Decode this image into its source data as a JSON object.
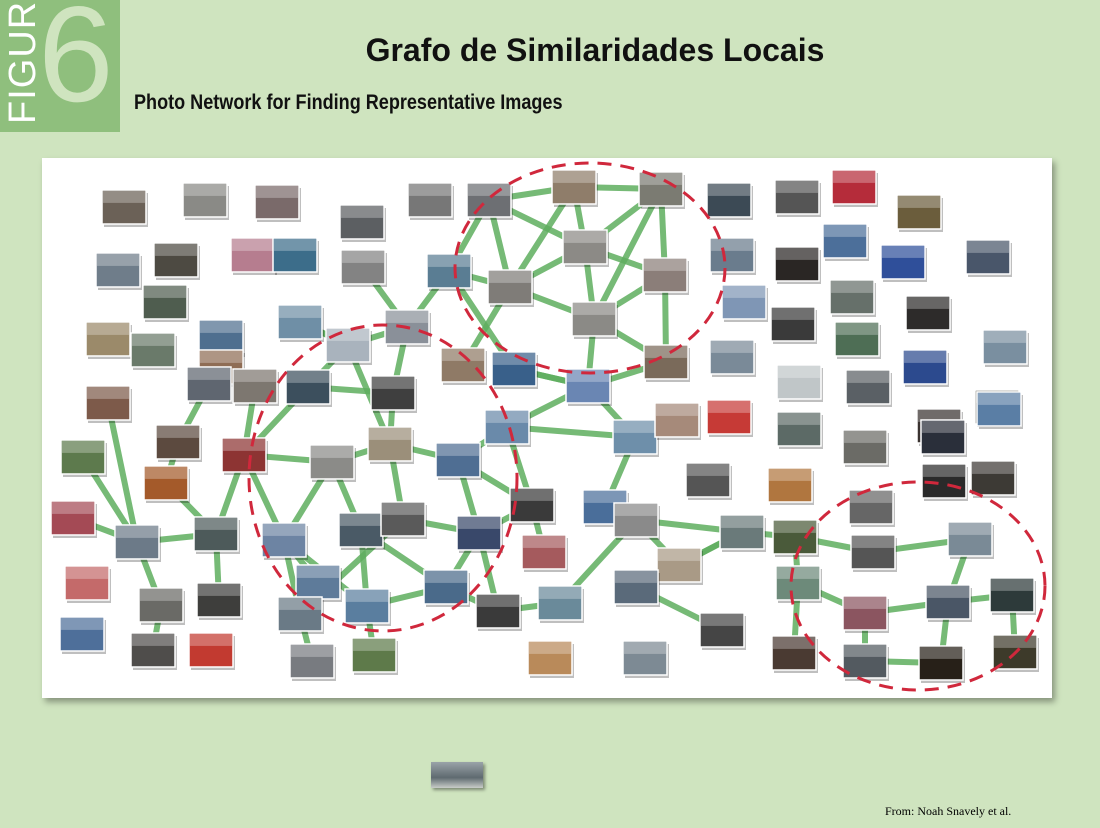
{
  "figure": {
    "word": "FIGURE",
    "number": "6"
  },
  "title": "Grafo de Similaridades Locais",
  "subtitle": "Photo Network for Finding Representative Images",
  "credit": "From: Noah Snavely et al.",
  "colors": {
    "background": "#cfe4bf",
    "badge": "#8fbf7d",
    "edge": "#5fae5f",
    "cluster_ring": "#d0283c"
  },
  "graph": {
    "nodes": [
      [
        "a1",
        102,
        190,
        "#6b6157"
      ],
      [
        "a2",
        183,
        183,
        "#8a8a86"
      ],
      [
        "a3",
        255,
        185,
        "#7a6a6a"
      ],
      [
        "a4",
        340,
        205,
        "#5c5f62"
      ],
      [
        "a5",
        408,
        183,
        "#777"
      ],
      [
        "a6",
        467,
        183,
        "#6d6f73"
      ],
      [
        "a7",
        552,
        170,
        "#8f7d6a"
      ],
      [
        "a8",
        639,
        172,
        "#7b7b72"
      ],
      [
        "a9",
        707,
        183,
        "#3c4a55"
      ],
      [
        "a10",
        775,
        180,
        "#555"
      ],
      [
        "a11",
        832,
        170,
        "#b52c3a"
      ],
      [
        "a12",
        897,
        195,
        "#6b5d3c"
      ],
      [
        "b1",
        96,
        253,
        "#6f7d8a"
      ],
      [
        "b2",
        154,
        243,
        "#4d4a42"
      ],
      [
        "b3",
        231,
        238,
        "#b67d8f"
      ],
      [
        "b4",
        273,
        238,
        "#3c6d8a"
      ],
      [
        "b5",
        341,
        250,
        "#838383"
      ],
      [
        "b6",
        427,
        254,
        "#5a7d93"
      ],
      [
        "b7",
        563,
        230,
        "#8c8a86"
      ],
      [
        "b8",
        643,
        258,
        "#8b7e79"
      ],
      [
        "b9",
        710,
        238,
        "#6a7c8d"
      ],
      [
        "b10",
        775,
        247,
        "#2a2624"
      ],
      [
        "b11",
        823,
        224,
        "#4c6f9a"
      ],
      [
        "b12",
        881,
        245,
        "#2f4f9a"
      ],
      [
        "b13",
        966,
        240,
        "#49566a"
      ],
      [
        "c1",
        86,
        322,
        "#9b8a6a"
      ],
      [
        "c2",
        143,
        285,
        "#4f5d4f"
      ],
      [
        "c3",
        199,
        320,
        "#4f6f8f"
      ],
      [
        "c4",
        278,
        305,
        "#6f8fa6"
      ],
      [
        "c5",
        385,
        310,
        "#8a9099"
      ],
      [
        "c6",
        488,
        270,
        "#7f7c78"
      ],
      [
        "c7",
        572,
        302,
        "#8b8a86"
      ],
      [
        "c8",
        722,
        285,
        "#7f96b5"
      ],
      [
        "c9",
        771,
        307,
        "#3a3a3a"
      ],
      [
        "c10",
        830,
        280,
        "#66706a"
      ],
      [
        "c11",
        906,
        296,
        "#2d2b2a"
      ],
      [
        "c12",
        983,
        330,
        "#7a8fa0"
      ],
      [
        "d1",
        131,
        333,
        "#6a7a6a"
      ],
      [
        "d2",
        199,
        350,
        "#8f6d55"
      ],
      [
        "d3",
        326,
        328,
        "#a9b3bd"
      ],
      [
        "d4",
        371,
        376,
        "#3f3f3f"
      ],
      [
        "d5",
        441,
        348,
        "#8f7a66"
      ],
      [
        "d6",
        492,
        352,
        "#39608a"
      ],
      [
        "d7",
        644,
        345,
        "#7a6a5a"
      ],
      [
        "d8",
        710,
        340,
        "#7a8a98"
      ],
      [
        "d9",
        835,
        322,
        "#4e6e55"
      ],
      [
        "d10",
        903,
        350,
        "#2c4a8e"
      ],
      [
        "d11",
        975,
        390,
        "#6b6a60"
      ],
      [
        "e1",
        86,
        386,
        "#7d5a4a"
      ],
      [
        "e2",
        187,
        367,
        "#5f6670"
      ],
      [
        "e3",
        233,
        369,
        "#7d7770"
      ],
      [
        "e4",
        286,
        370,
        "#3c4f5d"
      ],
      [
        "e5",
        566,
        369,
        "#6a86b3"
      ],
      [
        "e6",
        777,
        365,
        "#c0c6c8"
      ],
      [
        "e7",
        846,
        370,
        "#5a6065"
      ],
      [
        "e8",
        917,
        409,
        "#3a3330"
      ],
      [
        "f1",
        156,
        425,
        "#5c4a3f"
      ],
      [
        "f2",
        222,
        438,
        "#8d3433"
      ],
      [
        "f3",
        368,
        427,
        "#9b8f7a"
      ],
      [
        "f4",
        436,
        443,
        "#4f6e93"
      ],
      [
        "f5",
        485,
        410,
        "#6a8aaa"
      ],
      [
        "f6",
        613,
        420,
        "#6e8faa"
      ],
      [
        "f7",
        655,
        403,
        "#a68a7a"
      ],
      [
        "f8",
        707,
        400,
        "#c63a36"
      ],
      [
        "f9",
        777,
        412,
        "#5c6a66"
      ],
      [
        "f10",
        843,
        430,
        "#6b6b66"
      ],
      [
        "f11",
        921,
        420,
        "#2a2f3a"
      ],
      [
        "f12",
        977,
        392,
        "#5a7ea5"
      ],
      [
        "g1",
        61,
        440,
        "#5d7a4d"
      ],
      [
        "g2",
        144,
        466,
        "#a45a2a"
      ],
      [
        "g3",
        310,
        445,
        "#8b8b88"
      ],
      [
        "g4",
        510,
        488,
        "#3a3a3a"
      ],
      [
        "g5",
        583,
        490,
        "#4a6e9a"
      ],
      [
        "g6",
        686,
        463,
        "#555"
      ],
      [
        "g7",
        768,
        468,
        "#b0763f"
      ],
      [
        "g8",
        849,
        490,
        "#666"
      ],
      [
        "g9",
        922,
        464,
        "#2a2a2a"
      ],
      [
        "g10",
        971,
        461,
        "#3d3a35"
      ],
      [
        "h1",
        51,
        501,
        "#a44a55"
      ],
      [
        "h2",
        194,
        517,
        "#4d5a5a"
      ],
      [
        "h3",
        262,
        523,
        "#6d84a3"
      ],
      [
        "h4",
        339,
        513,
        "#4a5a66"
      ],
      [
        "h5",
        381,
        502,
        "#5a5a5a"
      ],
      [
        "h6",
        457,
        516,
        "#39486a"
      ],
      [
        "h7",
        522,
        535,
        "#a55a5d"
      ],
      [
        "h8",
        614,
        503,
        "#8a8a8a"
      ],
      [
        "h9",
        720,
        515,
        "#6a7a7a"
      ],
      [
        "h10",
        773,
        520,
        "#4a5a3a"
      ],
      [
        "h11",
        851,
        535,
        "#555"
      ],
      [
        "h12",
        948,
        522,
        "#7a8a96"
      ],
      [
        "i1",
        65,
        566,
        "#c46a6a"
      ],
      [
        "i2",
        115,
        525,
        "#6c7a88"
      ],
      [
        "i3",
        296,
        565,
        "#5e7b9a"
      ],
      [
        "i4",
        424,
        570,
        "#4a6a8a"
      ],
      [
        "i5",
        657,
        548,
        "#a99a86"
      ],
      [
        "i6",
        776,
        566,
        "#6d8a7a"
      ],
      [
        "i7",
        990,
        578,
        "#2d3a3a"
      ],
      [
        "j1",
        139,
        588,
        "#6a6a66"
      ],
      [
        "j2",
        197,
        583,
        "#3e3e3c"
      ],
      [
        "j3",
        278,
        597,
        "#6a7a86"
      ],
      [
        "j4",
        345,
        589,
        "#5a7e9f"
      ],
      [
        "j5",
        476,
        594,
        "#3a3a3a"
      ],
      [
        "j6",
        538,
        586,
        "#6a8a9a"
      ],
      [
        "j7",
        614,
        570,
        "#5a6a7a"
      ],
      [
        "j8",
        843,
        596,
        "#8b5560"
      ],
      [
        "j9",
        926,
        585,
        "#4a5666"
      ],
      [
        "k1",
        60,
        617,
        "#4e6f9a"
      ],
      [
        "k2",
        131,
        633,
        "#4f4d4b"
      ],
      [
        "k3",
        189,
        633,
        "#c23a30"
      ],
      [
        "k4",
        290,
        644,
        "#787b80"
      ],
      [
        "k5",
        352,
        638,
        "#5e7a4a"
      ],
      [
        "k6",
        528,
        641,
        "#b98a5a"
      ],
      [
        "k7",
        623,
        641,
        "#7d8a94"
      ],
      [
        "k8",
        700,
        613,
        "#454545"
      ],
      [
        "k9",
        772,
        636,
        "#4a3a32"
      ],
      [
        "k10",
        843,
        644,
        "#535a60"
      ],
      [
        "k11",
        919,
        646,
        "#272018"
      ],
      [
        "k12",
        993,
        635,
        "#3d3a2a"
      ]
    ],
    "edges": [
      [
        "a6",
        "a7"
      ],
      [
        "a7",
        "a8"
      ],
      [
        "a6",
        "b7"
      ],
      [
        "a6",
        "c6"
      ],
      [
        "a7",
        "b7"
      ],
      [
        "a7",
        "c6"
      ],
      [
        "a8",
        "b7"
      ],
      [
        "a8",
        "b8"
      ],
      [
        "a8",
        "c7"
      ],
      [
        "b7",
        "c6"
      ],
      [
        "b7",
        "c7"
      ],
      [
        "b7",
        "b8"
      ],
      [
        "c6",
        "c7"
      ],
      [
        "b8",
        "c7"
      ],
      [
        "b6",
        "c6"
      ],
      [
        "b6",
        "d6"
      ],
      [
        "c6",
        "d5"
      ],
      [
        "c7",
        "d7"
      ],
      [
        "b8",
        "d7"
      ],
      [
        "c7",
        "e5"
      ],
      [
        "d7",
        "e5"
      ],
      [
        "d6",
        "e5"
      ],
      [
        "e5",
        "f6"
      ],
      [
        "e5",
        "f5"
      ],
      [
        "a6",
        "b6"
      ],
      [
        "b6",
        "c5"
      ],
      [
        "c5",
        "d3"
      ],
      [
        "c5",
        "d4"
      ],
      [
        "d4",
        "f3"
      ],
      [
        "c4",
        "d3"
      ],
      [
        "d3",
        "f3"
      ],
      [
        "f3",
        "g3"
      ],
      [
        "f3",
        "f4"
      ],
      [
        "f3",
        "h5"
      ],
      [
        "f4",
        "h6"
      ],
      [
        "f4",
        "g4"
      ],
      [
        "f5",
        "g4"
      ],
      [
        "f5",
        "f6"
      ],
      [
        "f6",
        "g5"
      ],
      [
        "g5",
        "h8"
      ],
      [
        "g4",
        "h7"
      ],
      [
        "h8",
        "i5"
      ],
      [
        "i5",
        "j7"
      ],
      [
        "h8",
        "h9"
      ],
      [
        "h9",
        "h10"
      ],
      [
        "h10",
        "h11"
      ],
      [
        "h11",
        "h12"
      ],
      [
        "h12",
        "j9"
      ],
      [
        "i6",
        "j8"
      ],
      [
        "j8",
        "j9"
      ],
      [
        "j9",
        "i7"
      ],
      [
        "i6",
        "k9"
      ],
      [
        "j8",
        "k10"
      ],
      [
        "j9",
        "k11"
      ],
      [
        "i7",
        "k12"
      ],
      [
        "k10",
        "k11"
      ],
      [
        "j5",
        "h6"
      ],
      [
        "j5",
        "j6"
      ],
      [
        "j6",
        "h8"
      ],
      [
        "j4",
        "i4"
      ],
      [
        "i4",
        "j5"
      ],
      [
        "h4",
        "j4"
      ],
      [
        "h3",
        "j4"
      ],
      [
        "g3",
        "h3"
      ],
      [
        "g3",
        "h4"
      ],
      [
        "f2",
        "g3"
      ],
      [
        "f2",
        "h3"
      ],
      [
        "f2",
        "h2"
      ],
      [
        "h2",
        "j2"
      ],
      [
        "h3",
        "j3"
      ],
      [
        "j3",
        "k4"
      ],
      [
        "j3",
        "h5"
      ],
      [
        "h4",
        "i4"
      ],
      [
        "h5",
        "h6"
      ],
      [
        "h6",
        "i4"
      ],
      [
        "h4",
        "h5"
      ],
      [
        "i3",
        "h3"
      ],
      [
        "j4",
        "k5"
      ],
      [
        "e3",
        "f2"
      ],
      [
        "e4",
        "f2"
      ],
      [
        "d4",
        "e4"
      ],
      [
        "d3",
        "e4"
      ],
      [
        "c4",
        "d3"
      ],
      [
        "b5",
        "c5"
      ],
      [
        "e2",
        "f1"
      ],
      [
        "f1",
        "g2"
      ],
      [
        "g2",
        "h2"
      ],
      [
        "e1",
        "i2"
      ],
      [
        "g1",
        "i2"
      ],
      [
        "i2",
        "h1"
      ],
      [
        "i2",
        "j1"
      ],
      [
        "j1",
        "k2"
      ],
      [
        "i2",
        "h2"
      ],
      [
        "e5",
        "d6"
      ],
      [
        "f5",
        "f4"
      ],
      [
        "g4",
        "h6"
      ],
      [
        "i5",
        "h9"
      ],
      [
        "j7",
        "k8"
      ],
      [
        "h9",
        "j7"
      ],
      [
        "i6",
        "h10"
      ]
    ]
  }
}
